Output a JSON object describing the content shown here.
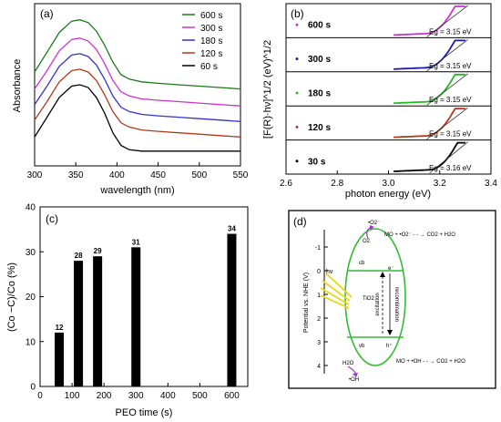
{
  "figure": {
    "panels": [
      "(a)",
      "(b)",
      "(c)",
      "(d)"
    ]
  },
  "chart_data": [
    {
      "panel": "(a)",
      "type": "line",
      "xlabel": "wavelength (nm)",
      "ylabel": "Absorbance",
      "xlim": [
        300,
        550
      ],
      "xticks": [
        300,
        350,
        400,
        450,
        500,
        550
      ],
      "legend_position": "top-right",
      "x": [
        300,
        315,
        330,
        345,
        355,
        365,
        375,
        385,
        395,
        405,
        415,
        430,
        450,
        475,
        500,
        525,
        550
      ],
      "series": [
        {
          "name": "600 s",
          "color": "#1a7a1a",
          "values": [
            0.6,
            0.74,
            0.88,
            0.96,
            0.97,
            0.95,
            0.89,
            0.79,
            0.67,
            0.58,
            0.55,
            0.53,
            0.52,
            0.51,
            0.5,
            0.49,
            0.48
          ]
        },
        {
          "name": "300 s",
          "color": "#cc33cc",
          "values": [
            0.48,
            0.61,
            0.75,
            0.83,
            0.84,
            0.82,
            0.76,
            0.66,
            0.54,
            0.46,
            0.43,
            0.41,
            0.4,
            0.39,
            0.38,
            0.37,
            0.36
          ]
        },
        {
          "name": "180 s",
          "color": "#3333cc",
          "values": [
            0.37,
            0.5,
            0.64,
            0.72,
            0.73,
            0.71,
            0.65,
            0.55,
            0.43,
            0.35,
            0.32,
            0.3,
            0.29,
            0.28,
            0.27,
            0.26,
            0.25
          ]
        },
        {
          "name": "120 s",
          "color": "#b23a1a",
          "values": [
            0.26,
            0.39,
            0.53,
            0.61,
            0.62,
            0.6,
            0.54,
            0.44,
            0.32,
            0.24,
            0.21,
            0.19,
            0.18,
            0.17,
            0.16,
            0.15,
            0.14
          ]
        },
        {
          "name": "60 s",
          "color": "#000000",
          "values": [
            0.14,
            0.28,
            0.42,
            0.5,
            0.51,
            0.49,
            0.42,
            0.31,
            0.17,
            0.08,
            0.05,
            0.04,
            0.04,
            0.04,
            0.04,
            0.04,
            0.04
          ]
        }
      ]
    },
    {
      "panel": "(b)",
      "type": "line",
      "xlabel": "photon energy (eV)",
      "ylabel": "[F(R)·hν]^1/2 (eV)^1/2",
      "xlim": [
        2.6,
        3.4
      ],
      "xticks": [
        "2.6",
        "2.8",
        "3.0",
        "3.2",
        "3.4"
      ],
      "stacked_subplots": true,
      "series": [
        {
          "name": "600 s",
          "color": "#cc33cc",
          "eg_label": "Eg = 3.15 eV",
          "eg": 3.15
        },
        {
          "name": "300 s",
          "color": "#1a1ab0",
          "eg_label": "Eg = 3.15 eV",
          "eg": 3.15
        },
        {
          "name": "180 s",
          "color": "#22bb22",
          "eg_label": "Eg = 3.15 eV",
          "eg": 3.15
        },
        {
          "name": "120 s",
          "color": "#b23a1a",
          "eg_label": "Eg = 3.15 eV",
          "eg": 3.15
        },
        {
          "name": "30 s",
          "color": "#000000",
          "eg_label": "Eg = 3.16 eV",
          "eg": 3.16
        }
      ]
    },
    {
      "panel": "(c)",
      "type": "bar",
      "xlabel": "PEO time (s)",
      "ylabel": "(Co −C)/Co (%)",
      "xlim": [
        0,
        650
      ],
      "ylim": [
        0,
        40
      ],
      "xticks": [
        0,
        100,
        200,
        300,
        400,
        500,
        600
      ],
      "yticks": [
        0,
        10,
        20,
        30,
        40
      ],
      "x": [
        60,
        120,
        180,
        300,
        600
      ],
      "values": [
        12,
        28,
        29,
        31,
        34
      ],
      "data_labels": [
        "12",
        "28",
        "29",
        "31",
        "34"
      ]
    }
  ],
  "diagram_d": {
    "panel": "(d)",
    "ylabel": "Potential vs. NHE (V)",
    "yticks": [
      "-1",
      "0",
      "1",
      "2",
      "3",
      "4"
    ],
    "cb_label": "cb",
    "vb_label": "vb",
    "light_label": "hν",
    "material_label": "TiO2",
    "electron_label": "e⁻",
    "hole_label": "h⁺",
    "excitation_label": "excitation",
    "recombination_label": "recombination",
    "o2_label": "O2",
    "superoxide_label": "•O2⁻",
    "h2o_label": "H2O",
    "hydroxyl_label": "•OH",
    "top_reaction": "MO + •O2⁻ - - → CO2 + H2O",
    "bottom_reaction": "MO + •OH - - → CO2 + H2O"
  }
}
